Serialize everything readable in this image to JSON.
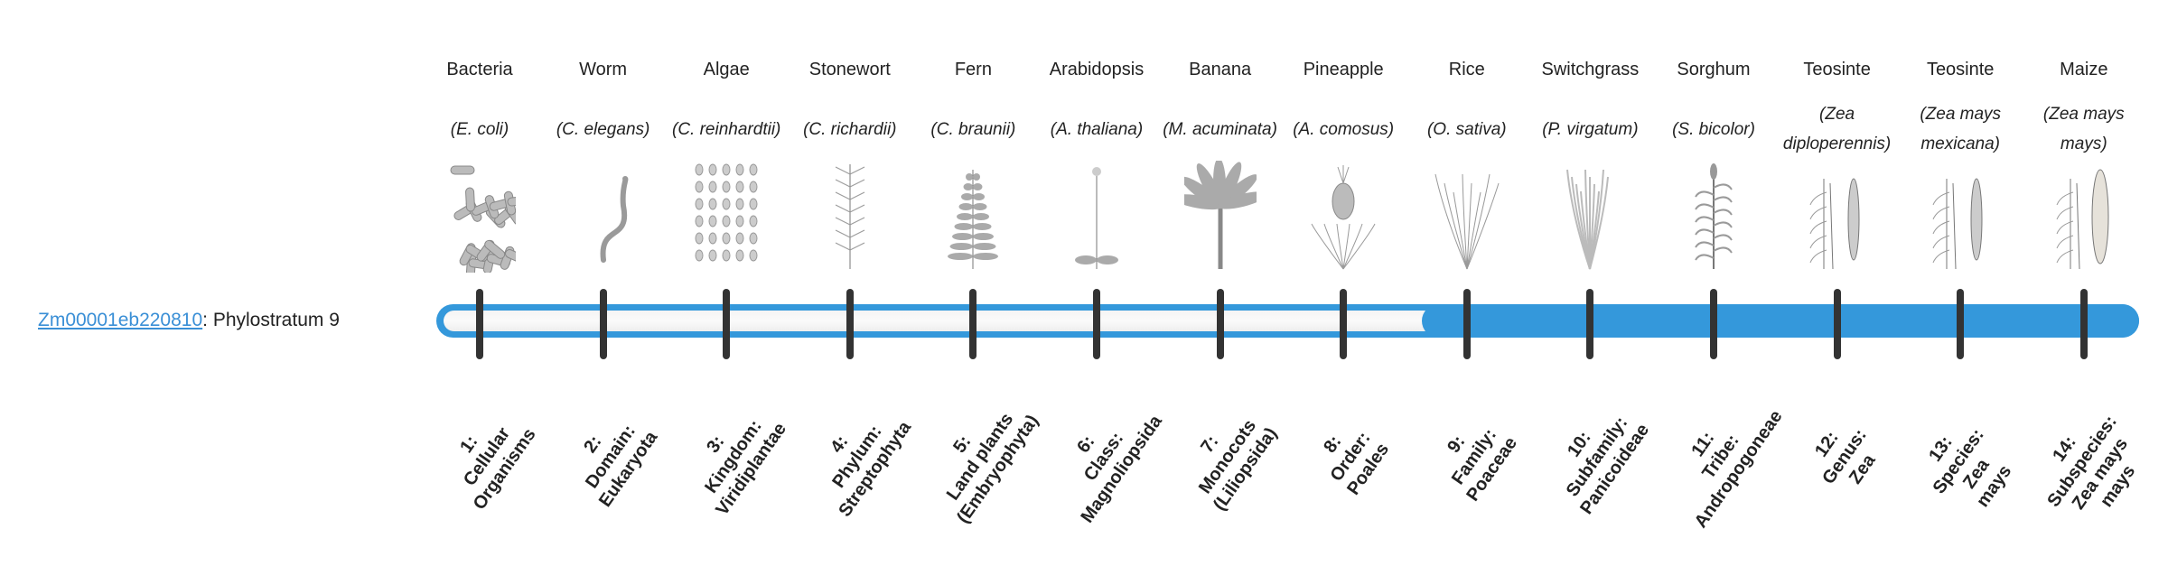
{
  "gene": {
    "id_link": "Zm00001eb220810",
    "suffix": ": Phylostratum 9",
    "phylostratum": 9
  },
  "colors": {
    "accent": "#3498db",
    "tick": "#333333",
    "link": "#3a8fd6"
  },
  "strata": [
    {
      "common": "Bacteria",
      "scientific": "(E. coli)",
      "icon": "bacteria-illustration",
      "label": [
        "1:",
        "Cellular",
        "Organisms"
      ]
    },
    {
      "common": "Worm",
      "scientific": "(C. elegans)",
      "icon": "worm-illustration",
      "label": [
        "2:",
        "Domain:",
        "Eukaryota"
      ]
    },
    {
      "common": "Algae",
      "scientific": "(C. reinhardtii)",
      "icon": "algae-illustration",
      "label": [
        "3:",
        "Kingdom:",
        "Viridiplantae"
      ]
    },
    {
      "common": "Stonewort",
      "scientific": "(C. richardii)",
      "icon": "stonewort-illustration",
      "label": [
        "4:",
        "Phylum:",
        "Streptophyta"
      ]
    },
    {
      "common": "Fern",
      "scientific": "(C. braunii)",
      "icon": "fern-illustration",
      "label": [
        "5:",
        "Land plants",
        "(Embryophyta)"
      ]
    },
    {
      "common": "Arabidopsis",
      "scientific": "(A. thaliana)",
      "icon": "arabidopsis-illustration",
      "label": [
        "6:",
        "Class:",
        "Magnoliopsida"
      ]
    },
    {
      "common": "Banana",
      "scientific": "(M. acuminata)",
      "icon": "banana-illustration",
      "label": [
        "7:",
        "Monocots",
        "(Liliopsida)"
      ]
    },
    {
      "common": "Pineapple",
      "scientific": "(A. comosus)",
      "icon": "pineapple-illustration",
      "label": [
        "8:",
        "Order:",
        "Poales"
      ]
    },
    {
      "common": "Rice",
      "scientific": "(O. sativa)",
      "icon": "rice-illustration",
      "label": [
        "9:",
        "Family:",
        "Poaceae"
      ]
    },
    {
      "common": "Switchgrass",
      "scientific": "(P. virgatum)",
      "icon": "switchgrass-illustration",
      "label": [
        "10:",
        "Subfamily:",
        "Panicoideae"
      ]
    },
    {
      "common": "Sorghum",
      "scientific": "(S. bicolor)",
      "icon": "sorghum-illustration",
      "label": [
        "11:",
        "Tribe:",
        "Andropogoneae"
      ]
    },
    {
      "common": "Teosinte",
      "scientific": "(Zea diploperennis)",
      "icon": "teosinte-illustration",
      "label": [
        "12:",
        "Genus:",
        "Zea"
      ]
    },
    {
      "common": "Teosinte",
      "scientific": "(Zea mays mexicana)",
      "icon": "teosinte-illustration",
      "label": [
        "13:",
        "Species:",
        "Zea",
        "mays"
      ]
    },
    {
      "common": "Maize",
      "scientific": "(Zea mays mays)",
      "icon": "maize-illustration",
      "label": [
        "14:",
        "Subspecies:",
        "Zea mays",
        "mays"
      ]
    }
  ]
}
